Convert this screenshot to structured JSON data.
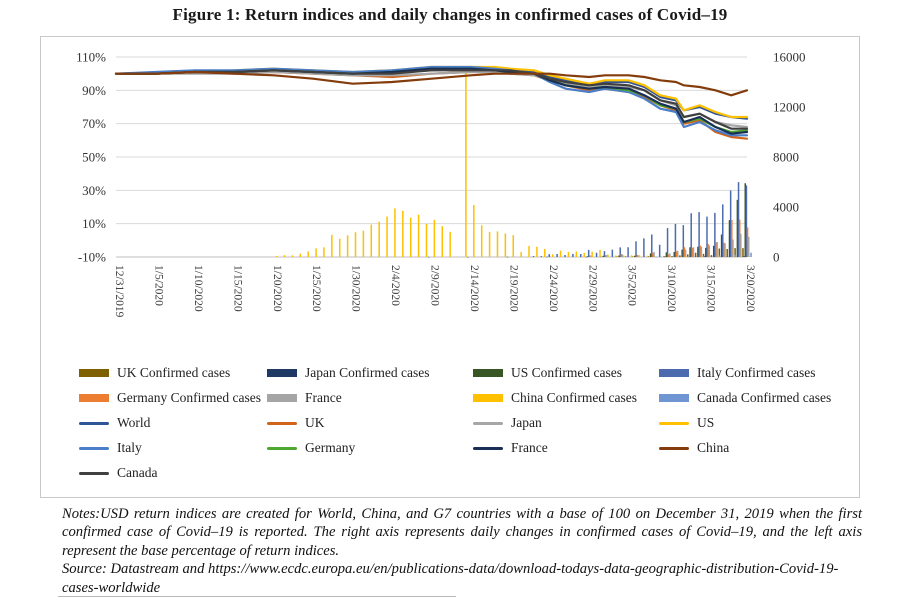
{
  "figure_title": "Figure 1: Return indices and daily changes in confirmed cases of Covid–19",
  "notes_text": "Notes:USD return indices are created for World, China, and G7 countries with a base of 100 on December 31, 2019 when the first confirmed case of Covid–19 is reported. The right axis represents daily changes in confirmed cases of Covid–19, and the left axis represent the base percentage of return indices.",
  "source_text": "Source: Datastream and https://www.ecdc.europa.eu/en/publications-data/download-todays-data-geographic-distribution-Covid-19-cases-worldwide",
  "chart_data": {
    "type": "combo-line-bar",
    "title": "Figure 1: Return indices and daily changes in confirmed cases of Covid–19",
    "grid": true,
    "legend_position": "bottom",
    "x_axis": {
      "domain_days": [
        0,
        80
      ],
      "tick_days": [
        0,
        5,
        10,
        15,
        20,
        25,
        30,
        35,
        40,
        45,
        50,
        55,
        60,
        65,
        70,
        75,
        80
      ],
      "tick_labels": [
        "12/31/2019",
        "1/5/2020",
        "1/10/2020",
        "1/15/2020",
        "1/20/2020",
        "1/25/2020",
        "1/30/2020",
        "2/4/2020",
        "2/9/2020",
        "2/14/2020",
        "2/19/2020",
        "2/24/2020",
        "2/29/2020",
        "3/5/2020",
        "3/10/2020",
        "3/15/2020",
        "3/20/2020"
      ]
    },
    "left_axis": {
      "description": "base percentage of return indices",
      "min": -10,
      "max": 110,
      "suffix": "%",
      "ticks": [
        -10,
        10,
        30,
        50,
        70,
        90,
        110
      ]
    },
    "right_axis": {
      "description": "daily changes in confirmed cases",
      "min": 0,
      "max": 16000,
      "ticks": [
        0,
        4000,
        8000,
        12000,
        16000
      ]
    },
    "line_days": [
      0,
      5,
      10,
      15,
      20,
      25,
      30,
      35,
      40,
      45,
      48,
      50,
      53,
      55,
      57,
      60,
      62,
      65,
      67,
      69,
      71,
      72,
      74,
      76,
      78,
      80
    ],
    "line_series": [
      {
        "name": "World",
        "color": "#2F5597",
        "values": [
          100,
          100,
          101,
          101,
          102,
          101,
          100,
          101,
          102,
          103,
          103,
          102,
          101,
          98,
          96,
          93,
          95,
          95,
          92,
          86,
          84,
          78,
          80,
          76,
          74,
          73
        ]
      },
      {
        "name": "UK",
        "color": "#D2641A",
        "values": [
          100,
          100,
          101,
          100,
          101,
          100,
          99,
          98,
          100,
          101,
          101,
          100,
          99,
          96,
          93,
          90,
          91,
          89,
          86,
          81,
          78,
          70,
          72,
          65,
          62,
          61
        ]
      },
      {
        "name": "Japan",
        "color": "#A6A6A6",
        "values": [
          100,
          100,
          100,
          100,
          101,
          100,
          99,
          99,
          100,
          101,
          101,
          100,
          99,
          97,
          94,
          92,
          93,
          92,
          90,
          84,
          81,
          74,
          76,
          71,
          69,
          68
        ]
      },
      {
        "name": "US",
        "color": "#FFC000",
        "values": [
          100,
          100,
          101,
          102,
          103,
          102,
          101,
          102,
          104,
          104,
          104,
          103,
          102,
          99,
          97,
          94,
          96,
          96,
          93,
          87,
          85,
          78,
          81,
          77,
          74,
          74
        ]
      },
      {
        "name": "Italy",
        "color": "#4B7EC8",
        "values": [
          100,
          101,
          102,
          102,
          103,
          102,
          101,
          102,
          104,
          104,
          103,
          102,
          100,
          95,
          91,
          89,
          91,
          89,
          85,
          79,
          77,
          68,
          71,
          66,
          63,
          63
        ]
      },
      {
        "name": "Germany",
        "color": "#4EA72E",
        "values": [
          100,
          100,
          101,
          101,
          102,
          101,
          100,
          101,
          103,
          103,
          102,
          101,
          100,
          96,
          93,
          91,
          92,
          90,
          87,
          81,
          79,
          71,
          73,
          68,
          65,
          66
        ]
      },
      {
        "name": "France",
        "color": "#1A2F55",
        "values": [
          100,
          100,
          101,
          101,
          102,
          101,
          100,
          101,
          103,
          103,
          102,
          101,
          100,
          96,
          93,
          91,
          92,
          91,
          87,
          82,
          79,
          71,
          74,
          68,
          64,
          65
        ]
      },
      {
        "name": "China",
        "color": "#843C0C",
        "values": [
          100,
          100,
          101,
          100,
          99,
          97,
          94,
          95,
          97,
          99,
          100,
          100,
          100,
          100,
          99,
          98,
          99,
          99,
          98,
          96,
          95,
          93,
          92,
          90,
          87,
          90
        ]
      },
      {
        "name": "Canada",
        "color": "#404040",
        "values": [
          100,
          100,
          101,
          101,
          102,
          101,
          100,
          100,
          102,
          102,
          102,
          102,
          100,
          97,
          95,
          93,
          94,
          93,
          90,
          84,
          82,
          74,
          76,
          71,
          67,
          67
        ]
      }
    ],
    "bar_series": [
      {
        "name": "UK Confirmed cases",
        "color": "#7F6000",
        "points": [
          [
            62,
            30
          ],
          [
            64,
            50
          ],
          [
            66,
            50
          ],
          [
            68,
            60
          ],
          [
            70,
            60
          ],
          [
            71,
            80
          ],
          [
            72,
            130
          ],
          [
            73,
            210
          ],
          [
            74,
            340
          ],
          [
            75,
            250
          ],
          [
            76,
            150
          ],
          [
            77,
            680
          ],
          [
            78,
            640
          ],
          [
            79,
            710
          ],
          [
            80,
            710
          ]
        ]
      },
      {
        "name": "Japan Confirmed cases",
        "color": "#1F3864",
        "points": [
          [
            40,
            8
          ],
          [
            45,
            10
          ],
          [
            50,
            15
          ],
          [
            55,
            20
          ],
          [
            60,
            15
          ],
          [
            65,
            40
          ],
          [
            70,
            30
          ],
          [
            75,
            60
          ],
          [
            80,
            50
          ]
        ]
      },
      {
        "name": "US Confirmed cases",
        "color": "#375623",
        "points": [
          [
            60,
            60
          ],
          [
            62,
            100
          ],
          [
            64,
            120
          ],
          [
            66,
            100
          ],
          [
            68,
            290
          ],
          [
            70,
            370
          ],
          [
            71,
            400
          ],
          [
            72,
            590
          ],
          [
            73,
            780
          ],
          [
            74,
            820
          ],
          [
            75,
            730
          ],
          [
            76,
            900
          ],
          [
            77,
            1800
          ],
          [
            78,
            2950
          ],
          [
            79,
            4570
          ],
          [
            80,
            5900
          ]
        ]
      },
      {
        "name": "Italy Confirmed cases",
        "color": "#4C6BAF",
        "points": [
          [
            53,
            78
          ],
          [
            54,
            72
          ],
          [
            55,
            230
          ],
          [
            56,
            240
          ],
          [
            57,
            160
          ],
          [
            58,
            250
          ],
          [
            59,
            240
          ],
          [
            60,
            570
          ],
          [
            61,
            340
          ],
          [
            62,
            470
          ],
          [
            63,
            590
          ],
          [
            64,
            770
          ],
          [
            65,
            780
          ],
          [
            66,
            1250
          ],
          [
            67,
            1490
          ],
          [
            68,
            1800
          ],
          [
            69,
            980
          ],
          [
            70,
            2310
          ],
          [
            71,
            2650
          ],
          [
            72,
            2550
          ],
          [
            73,
            3500
          ],
          [
            74,
            3590
          ],
          [
            75,
            3230
          ],
          [
            76,
            3530
          ],
          [
            77,
            4210
          ],
          [
            78,
            5320
          ],
          [
            79,
            5990
          ],
          [
            80,
            5730
          ]
        ]
      },
      {
        "name": "Germany Confirmed cases",
        "color": "#ED7D31",
        "points": [
          [
            60,
            130
          ],
          [
            62,
            150
          ],
          [
            64,
            240
          ],
          [
            66,
            170
          ],
          [
            68,
            310
          ],
          [
            70,
            180
          ],
          [
            71,
            450
          ],
          [
            72,
            780
          ],
          [
            73,
            740
          ],
          [
            74,
            910
          ],
          [
            75,
            1040
          ],
          [
            76,
            1170
          ],
          [
            77,
            1140
          ],
          [
            78,
            2960
          ],
          [
            79,
            2990
          ],
          [
            80,
            2360
          ]
        ]
      },
      {
        "name": "France",
        "color": "#A5A5A5",
        "points": [
          [
            60,
            100
          ],
          [
            62,
            140
          ],
          [
            64,
            190
          ],
          [
            66,
            130
          ],
          [
            68,
            410
          ],
          [
            70,
            290
          ],
          [
            71,
            500
          ],
          [
            72,
            590
          ],
          [
            73,
            780
          ],
          [
            74,
            830
          ],
          [
            75,
            920
          ],
          [
            76,
            1200
          ],
          [
            77,
            1100
          ],
          [
            78,
            1400
          ],
          [
            79,
            1860
          ],
          [
            80,
            1620
          ]
        ]
      },
      {
        "name": "China Confirmed cases",
        "color": "#FFC000",
        "points": [
          [
            20,
            77
          ],
          [
            21,
            149
          ],
          [
            22,
            131
          ],
          [
            23,
            259
          ],
          [
            24,
            444
          ],
          [
            25,
            688
          ],
          [
            26,
            776
          ],
          [
            27,
            1771
          ],
          [
            28,
            1459
          ],
          [
            29,
            1737
          ],
          [
            30,
            1981
          ],
          [
            31,
            2099
          ],
          [
            32,
            2589
          ],
          [
            33,
            2825
          ],
          [
            34,
            3235
          ],
          [
            35,
            3884
          ],
          [
            36,
            3694
          ],
          [
            37,
            3143
          ],
          [
            38,
            3385
          ],
          [
            39,
            2652
          ],
          [
            40,
            2973
          ],
          [
            41,
            2467
          ],
          [
            42,
            2015
          ],
          [
            44,
            15141
          ],
          [
            45,
            4156
          ],
          [
            46,
            2538
          ],
          [
            47,
            2007
          ],
          [
            48,
            2048
          ],
          [
            49,
            1886
          ],
          [
            50,
            1749
          ],
          [
            51,
            391
          ],
          [
            52,
            889
          ],
          [
            53,
            823
          ],
          [
            54,
            648
          ],
          [
            55,
            214
          ],
          [
            56,
            508
          ],
          [
            57,
            406
          ],
          [
            58,
            433
          ],
          [
            59,
            327
          ],
          [
            60,
            427
          ],
          [
            61,
            573
          ],
          [
            62,
            202
          ],
          [
            63,
            125
          ],
          [
            64,
            119
          ],
          [
            65,
            139
          ],
          [
            66,
            143
          ],
          [
            67,
            99
          ],
          [
            68,
            44
          ],
          [
            70,
            19
          ],
          [
            72,
            15
          ],
          [
            74,
            11
          ],
          [
            76,
            16
          ],
          [
            78,
            13
          ],
          [
            80,
            39
          ]
        ]
      },
      {
        "name": "Canada Confirmed cases",
        "color": "#6F96D2",
        "points": [
          [
            68,
            20
          ],
          [
            70,
            30
          ],
          [
            72,
            40
          ],
          [
            74,
            60
          ],
          [
            76,
            120
          ],
          [
            78,
            180
          ],
          [
            80,
            340
          ]
        ]
      }
    ]
  }
}
